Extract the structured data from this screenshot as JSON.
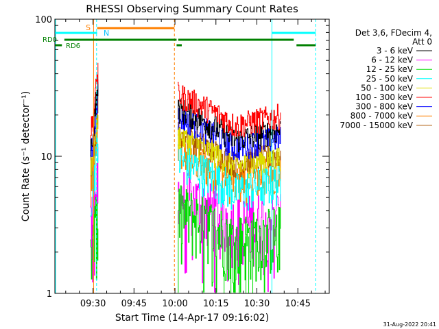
{
  "chart_data": {
    "type": "line",
    "title": "RHESSI Observing Summary Count Rates",
    "xlabel": "Start Time (14-Apr-17 09:16:02)",
    "ylabel": "Count Rate (s⁻¹ detector⁻¹)",
    "y_scale": "log",
    "ylim": [
      1,
      100
    ],
    "y_ticks": [
      "1",
      "10",
      "100"
    ],
    "x_tick_labels": [
      "09:30",
      "09:45",
      "10:00",
      "10:15",
      "10:30",
      "10:45"
    ],
    "x_tick_minutes": [
      30,
      45,
      60,
      75,
      90,
      105
    ],
    "xlim_minutes": [
      16.03,
      116.5
    ],
    "legend_header": [
      "Det 3,6, FDecim 4,",
      "Att 0"
    ],
    "footer_date": "31-Aug-2022 20:41",
    "series": [
      {
        "name": "3 - 6 keV",
        "color": "#000000",
        "level": 16.5
      },
      {
        "name": "6 - 12 keV",
        "color": "#ff00ff",
        "level": 4.0
      },
      {
        "name": "12 - 25 keV",
        "color": "#00dd00",
        "level": 3.0
      },
      {
        "name": "25 - 50 keV",
        "color": "#00ffff",
        "level": 7.0
      },
      {
        "name": "50 - 100 keV",
        "color": "#dddd00",
        "level": 10.5
      },
      {
        "name": "100 - 300 keV",
        "color": "#ff0000",
        "level": 21.0
      },
      {
        "name": "300 - 800 keV",
        "color": "#0000ff",
        "level": 14.5
      },
      {
        "name": "800 - 7000 keV",
        "color": "#ff8000",
        "level": 8.0
      },
      {
        "name": "7000 - 15000 keV",
        "color": "#aa5500",
        "level": 11.0
      }
    ],
    "data_gaps": [
      [
        32,
        61
      ],
      [
        98.7,
        116.5
      ]
    ],
    "markers": {
      "S": {
        "label": "S",
        "start": 30,
        "end": 60,
        "color": "#ff8000"
      },
      "N": {
        "label": "N",
        "start": 32,
        "end": 98,
        "color": "#00ffff"
      },
      "RD0": {
        "label": "RD0",
        "color": "#008000"
      },
      "RD6": {
        "label": "RD6",
        "color": "#008000"
      }
    }
  }
}
